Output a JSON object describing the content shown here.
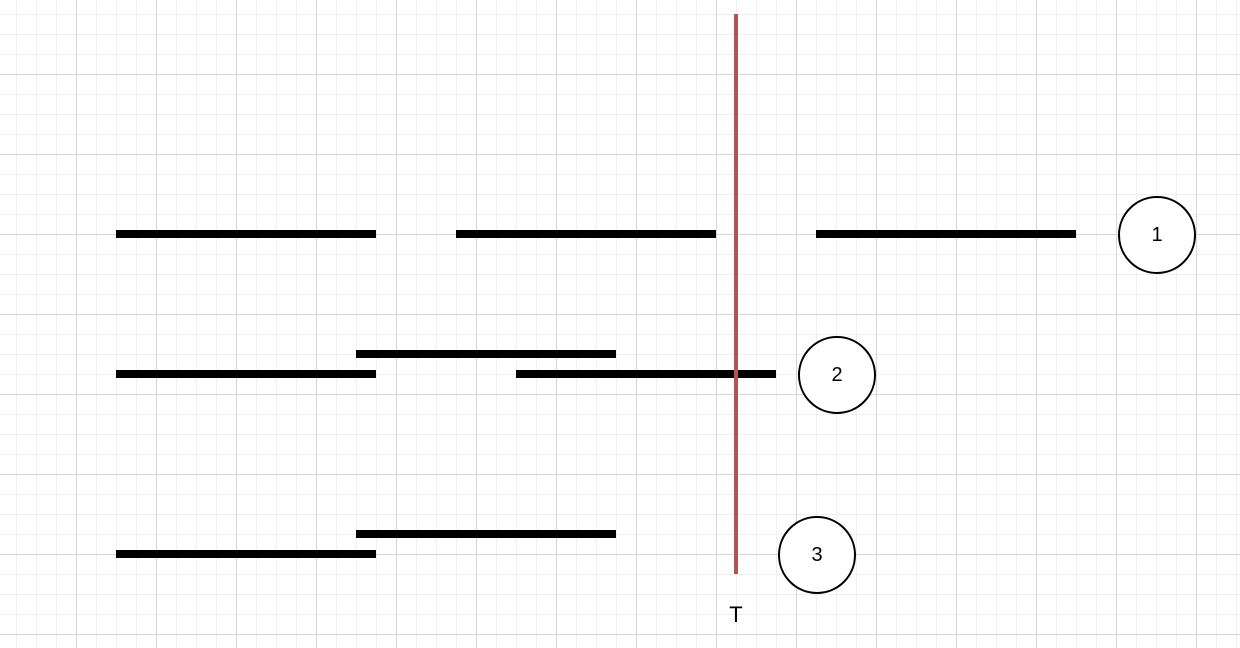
{
  "diagram": {
    "marker": {
      "label": "T",
      "color": "#b5534f"
    },
    "bar_color": "#000000",
    "groups": [
      {
        "label": "1"
      },
      {
        "label": "2"
      },
      {
        "label": "3"
      }
    ]
  }
}
